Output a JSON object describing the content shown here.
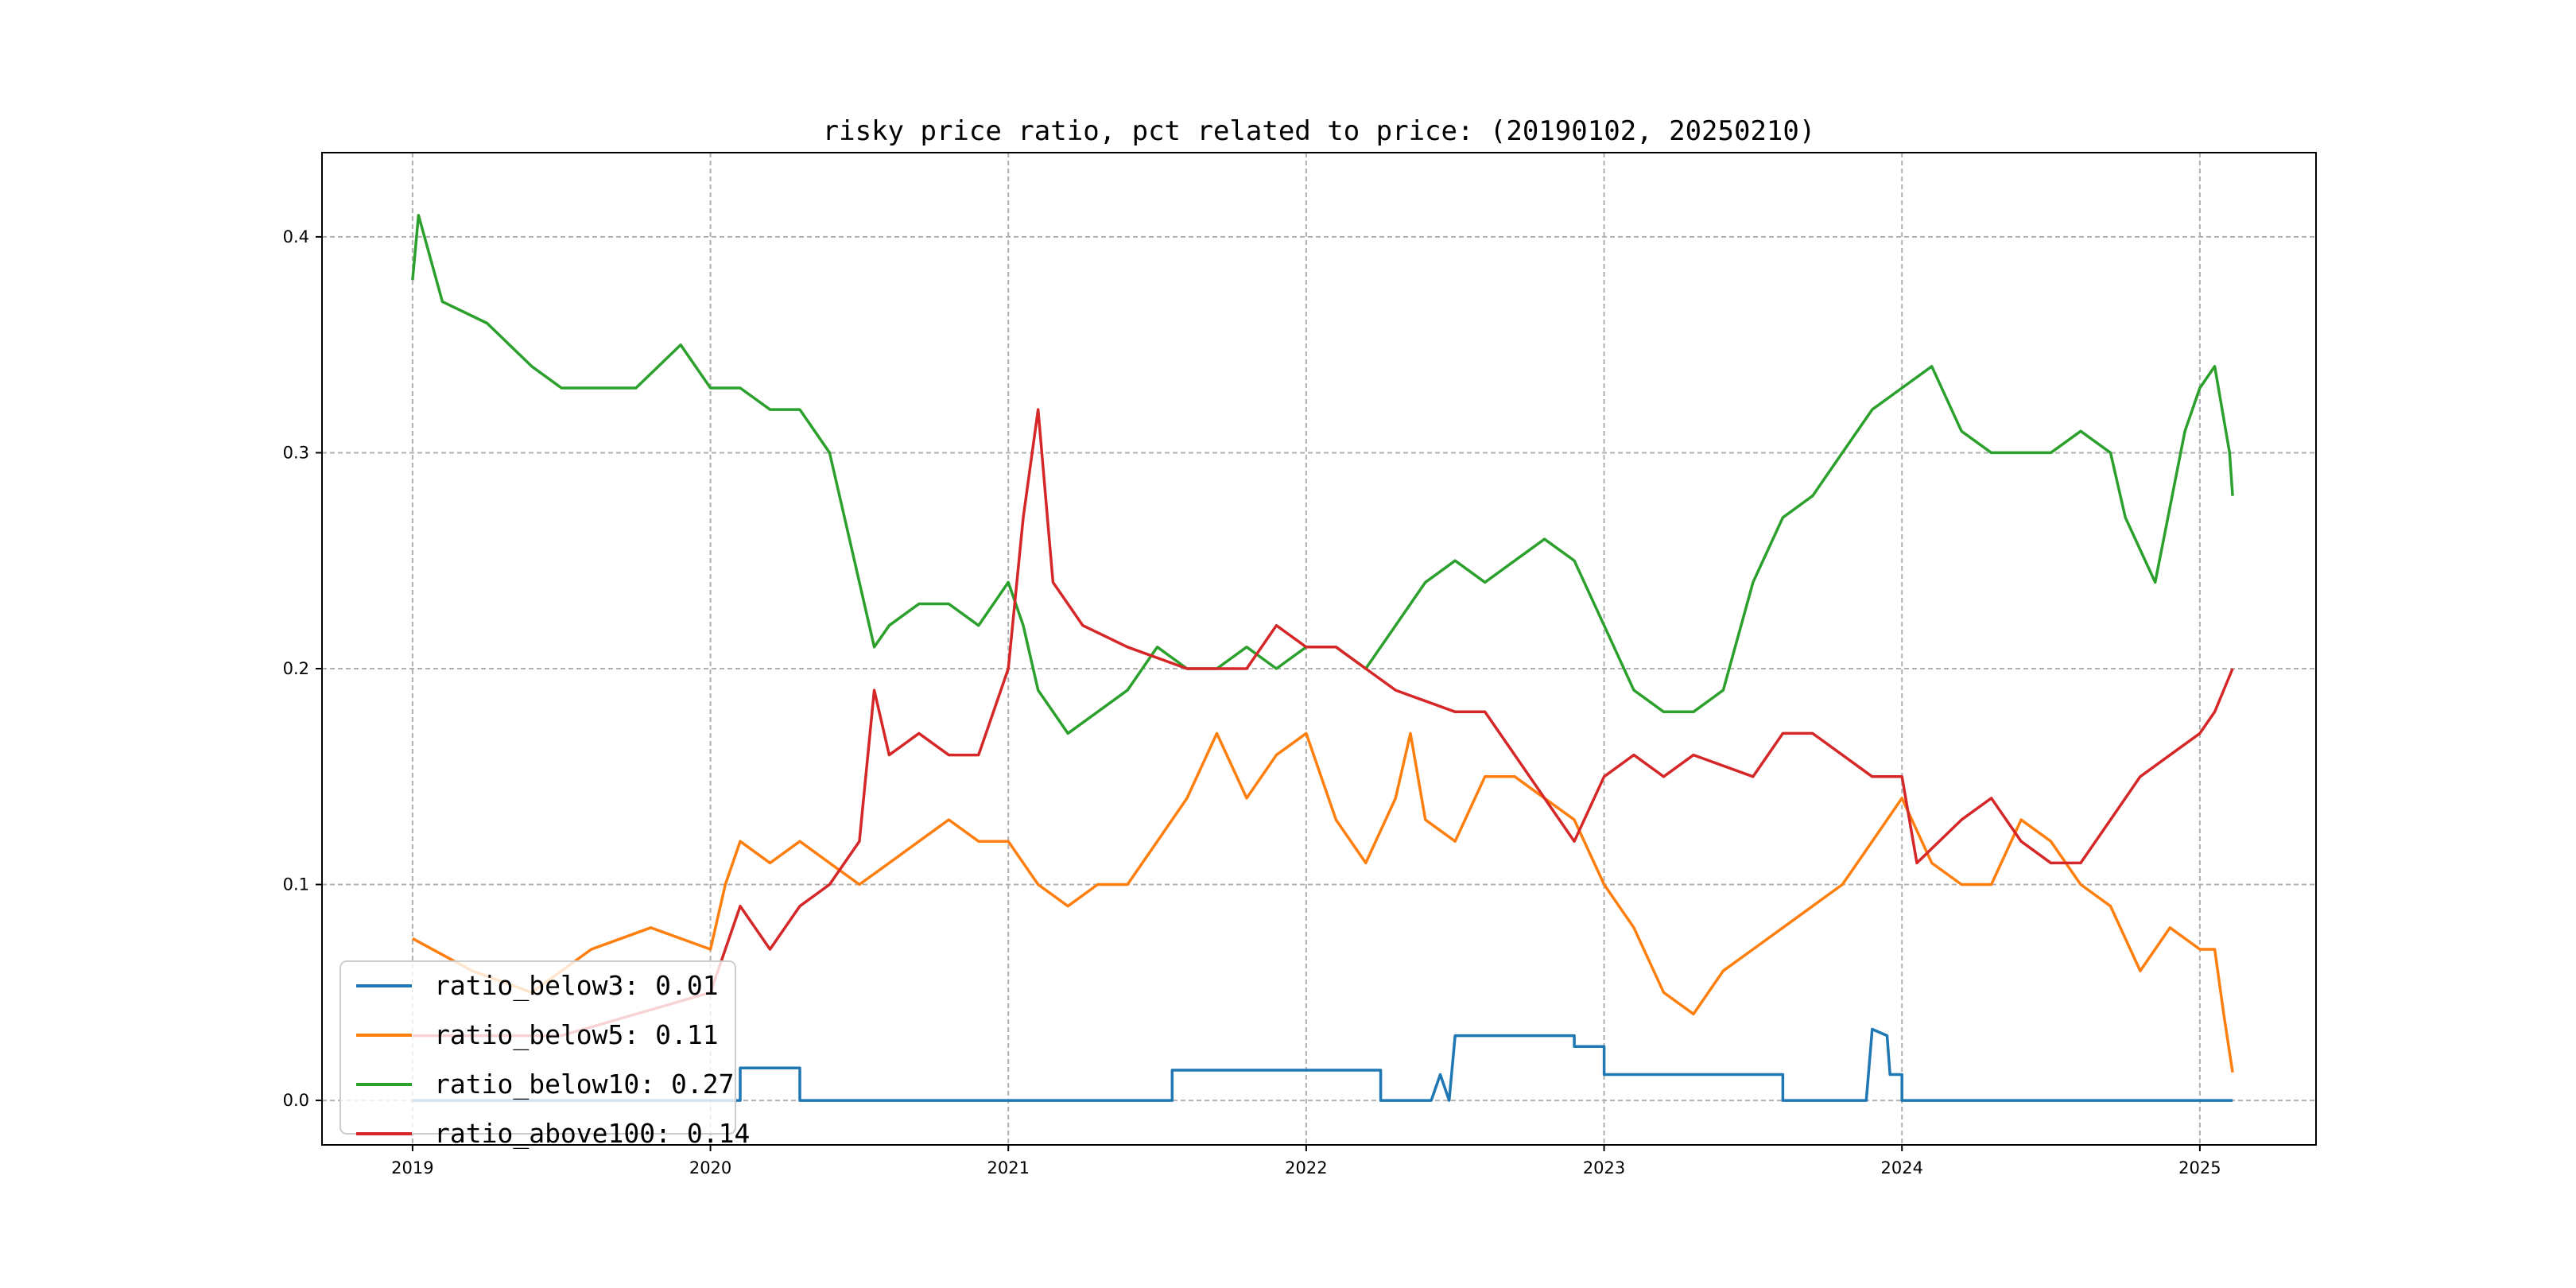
{
  "chart_data": {
    "type": "line",
    "title": "risky price ratio, pct related to price: (20190102, 20250210)",
    "xlabel": "",
    "ylabel": "",
    "xlim": [
      2018.696,
      2025.39
    ],
    "ylim": [
      -0.0206,
      0.439
    ],
    "grid": true,
    "legend_placement": "lower-left",
    "x_ticks": [
      "2019",
      "2020",
      "2021",
      "2022",
      "2023",
      "2024",
      "2025"
    ],
    "x_tick_values": [
      2019,
      2020,
      2021,
      2022,
      2023,
      2024,
      2025
    ],
    "y_ticks": [
      "0.0",
      "0.1",
      "0.2",
      "0.3",
      "0.4"
    ],
    "y_tick_values": [
      0,
      0.1,
      0.2,
      0.3,
      0.4
    ],
    "series": [
      {
        "name": "ratio_below3",
        "legend": "ratio_below3: 0.01",
        "color": "#1f77b4",
        "x": [
          2019.0,
          2020.1,
          2020.1,
          2020.3,
          2020.3,
          2021.55,
          2021.55,
          2022.25,
          2022.25,
          2022.42,
          2022.45,
          2022.48,
          2022.5,
          2022.9,
          2022.9,
          2023.0,
          2023.0,
          2023.6,
          2023.6,
          2023.88,
          2023.9,
          2023.95,
          2023.96,
          2024.0,
          2024.0,
          2025.11
        ],
        "y": [
          0,
          0,
          0.015,
          0.015,
          0,
          0,
          0.014,
          0.014,
          0,
          0,
          0.012,
          0.0,
          0.03,
          0.03,
          0.025,
          0.025,
          0.012,
          0.012,
          0,
          0,
          0.033,
          0.03,
          0.012,
          0.012,
          0,
          0
        ]
      },
      {
        "name": "ratio_below5",
        "legend": "ratio_below5: 0.11",
        "color": "#ff7f0e",
        "x": [
          2019.0,
          2019.2,
          2019.4,
          2019.6,
          2019.8,
          2020.0,
          2020.05,
          2020.1,
          2020.2,
          2020.3,
          2020.4,
          2020.5,
          2020.6,
          2020.7,
          2020.8,
          2020.9,
          2021.0,
          2021.1,
          2021.2,
          2021.3,
          2021.4,
          2021.5,
          2021.6,
          2021.7,
          2021.8,
          2021.9,
          2022.0,
          2022.1,
          2022.2,
          2022.3,
          2022.35,
          2022.4,
          2022.5,
          2022.6,
          2022.7,
          2022.8,
          2022.9,
          2023.0,
          2023.1,
          2023.2,
          2023.3,
          2023.4,
          2023.5,
          2023.6,
          2023.7,
          2023.8,
          2023.9,
          2024.0,
          2024.1,
          2024.2,
          2024.3,
          2024.4,
          2024.5,
          2024.6,
          2024.7,
          2024.8,
          2024.9,
          2025.0,
          2025.05,
          2025.08,
          2025.11
        ],
        "y": [
          0.075,
          0.06,
          0.05,
          0.07,
          0.08,
          0.07,
          0.1,
          0.12,
          0.11,
          0.12,
          0.11,
          0.1,
          0.11,
          0.12,
          0.13,
          0.12,
          0.12,
          0.1,
          0.09,
          0.1,
          0.1,
          0.12,
          0.14,
          0.17,
          0.14,
          0.16,
          0.17,
          0.13,
          0.11,
          0.14,
          0.17,
          0.13,
          0.12,
          0.15,
          0.15,
          0.14,
          0.13,
          0.1,
          0.08,
          0.05,
          0.04,
          0.06,
          0.07,
          0.08,
          0.09,
          0.1,
          0.12,
          0.14,
          0.11,
          0.1,
          0.1,
          0.13,
          0.12,
          0.1,
          0.09,
          0.06,
          0.08,
          0.07,
          0.07,
          0.04,
          0.013
        ]
      },
      {
        "name": "ratio_below10",
        "legend": "ratio_below10: 0.27",
        "color": "#2ca02c",
        "x": [
          2019.0,
          2019.02,
          2019.1,
          2019.25,
          2019.4,
          2019.5,
          2019.6,
          2019.75,
          2019.9,
          2020.0,
          2020.1,
          2020.2,
          2020.3,
          2020.4,
          2020.45,
          2020.5,
          2020.55,
          2020.6,
          2020.7,
          2020.8,
          2020.9,
          2021.0,
          2021.05,
          2021.1,
          2021.2,
          2021.3,
          2021.4,
          2021.5,
          2021.6,
          2021.7,
          2021.8,
          2021.9,
          2022.0,
          2022.1,
          2022.2,
          2022.3,
          2022.4,
          2022.5,
          2022.6,
          2022.7,
          2022.8,
          2022.9,
          2023.0,
          2023.1,
          2023.2,
          2023.3,
          2023.4,
          2023.5,
          2023.6,
          2023.7,
          2023.8,
          2023.9,
          2024.0,
          2024.1,
          2024.2,
          2024.3,
          2024.4,
          2024.5,
          2024.6,
          2024.7,
          2024.75,
          2024.85,
          2024.95,
          2025.0,
          2025.05,
          2025.1,
          2025.11
        ],
        "y": [
          0.38,
          0.41,
          0.37,
          0.36,
          0.34,
          0.33,
          0.33,
          0.33,
          0.35,
          0.33,
          0.33,
          0.32,
          0.32,
          0.3,
          0.27,
          0.24,
          0.21,
          0.22,
          0.23,
          0.23,
          0.22,
          0.24,
          0.22,
          0.19,
          0.17,
          0.18,
          0.19,
          0.21,
          0.2,
          0.2,
          0.21,
          0.2,
          0.21,
          0.21,
          0.2,
          0.22,
          0.24,
          0.25,
          0.24,
          0.25,
          0.26,
          0.25,
          0.22,
          0.19,
          0.18,
          0.18,
          0.19,
          0.24,
          0.27,
          0.28,
          0.3,
          0.32,
          0.33,
          0.34,
          0.31,
          0.3,
          0.3,
          0.3,
          0.31,
          0.3,
          0.27,
          0.24,
          0.31,
          0.33,
          0.34,
          0.3,
          0.28
        ]
      },
      {
        "name": "ratio_above100",
        "legend": "ratio_above100: 0.14",
        "color": "#d62728",
        "x": [
          2019.0,
          2019.5,
          2020.0,
          2020.1,
          2020.2,
          2020.3,
          2020.4,
          2020.5,
          2020.55,
          2020.6,
          2020.7,
          2020.8,
          2020.9,
          2021.0,
          2021.05,
          2021.1,
          2021.15,
          2021.25,
          2021.4,
          2021.6,
          2021.8,
          2021.9,
          2022.0,
          2022.1,
          2022.2,
          2022.3,
          2022.5,
          2022.6,
          2022.7,
          2022.8,
          2022.9,
          2023.0,
          2023.1,
          2023.2,
          2023.3,
          2023.5,
          2023.6,
          2023.7,
          2023.8,
          2023.9,
          2024.0,
          2024.05,
          2024.2,
          2024.3,
          2024.4,
          2024.5,
          2024.6,
          2024.7,
          2024.8,
          2024.9,
          2025.0,
          2025.05,
          2025.11
        ],
        "y": [
          0.03,
          0.03,
          0.05,
          0.09,
          0.07,
          0.09,
          0.1,
          0.12,
          0.19,
          0.16,
          0.17,
          0.16,
          0.16,
          0.2,
          0.27,
          0.32,
          0.24,
          0.22,
          0.21,
          0.2,
          0.2,
          0.22,
          0.21,
          0.21,
          0.2,
          0.19,
          0.18,
          0.18,
          0.16,
          0.14,
          0.12,
          0.15,
          0.16,
          0.15,
          0.16,
          0.15,
          0.17,
          0.17,
          0.16,
          0.15,
          0.15,
          0.11,
          0.13,
          0.14,
          0.12,
          0.11,
          0.11,
          0.13,
          0.15,
          0.16,
          0.17,
          0.18,
          0.2
        ]
      }
    ]
  }
}
